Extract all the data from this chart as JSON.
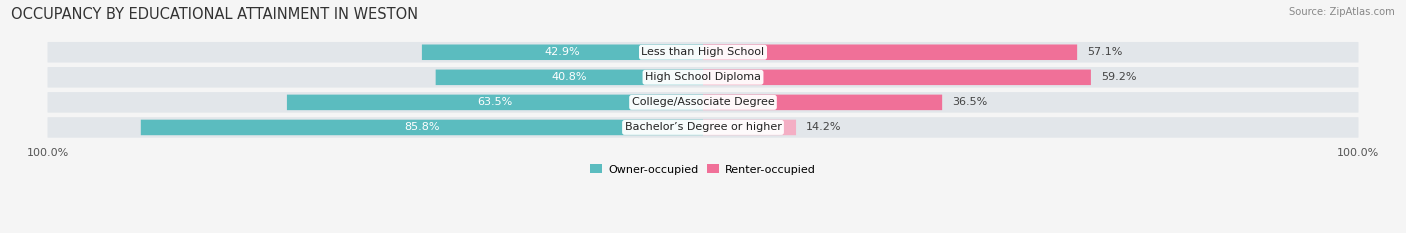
{
  "title": "OCCUPANCY BY EDUCATIONAL ATTAINMENT IN WESTON",
  "source": "Source: ZipAtlas.com",
  "categories": [
    "Less than High School",
    "High School Diploma",
    "College/Associate Degree",
    "Bachelor’s Degree or higher"
  ],
  "owner_values": [
    42.9,
    40.8,
    63.5,
    85.8
  ],
  "renter_values": [
    57.1,
    59.2,
    36.5,
    14.2
  ],
  "owner_color": "#5bbcbf",
  "renter_color": "#f07098",
  "renter_color_last": "#f4aec4",
  "background_color": "#f5f5f5",
  "bar_bg_color": "#e2e6ea",
  "legend_owner": "Owner-occupied",
  "legend_renter": "Renter-occupied",
  "title_fontsize": 10.5,
  "label_fontsize": 8.0,
  "value_fontsize": 8.0,
  "tick_fontsize": 8.0
}
